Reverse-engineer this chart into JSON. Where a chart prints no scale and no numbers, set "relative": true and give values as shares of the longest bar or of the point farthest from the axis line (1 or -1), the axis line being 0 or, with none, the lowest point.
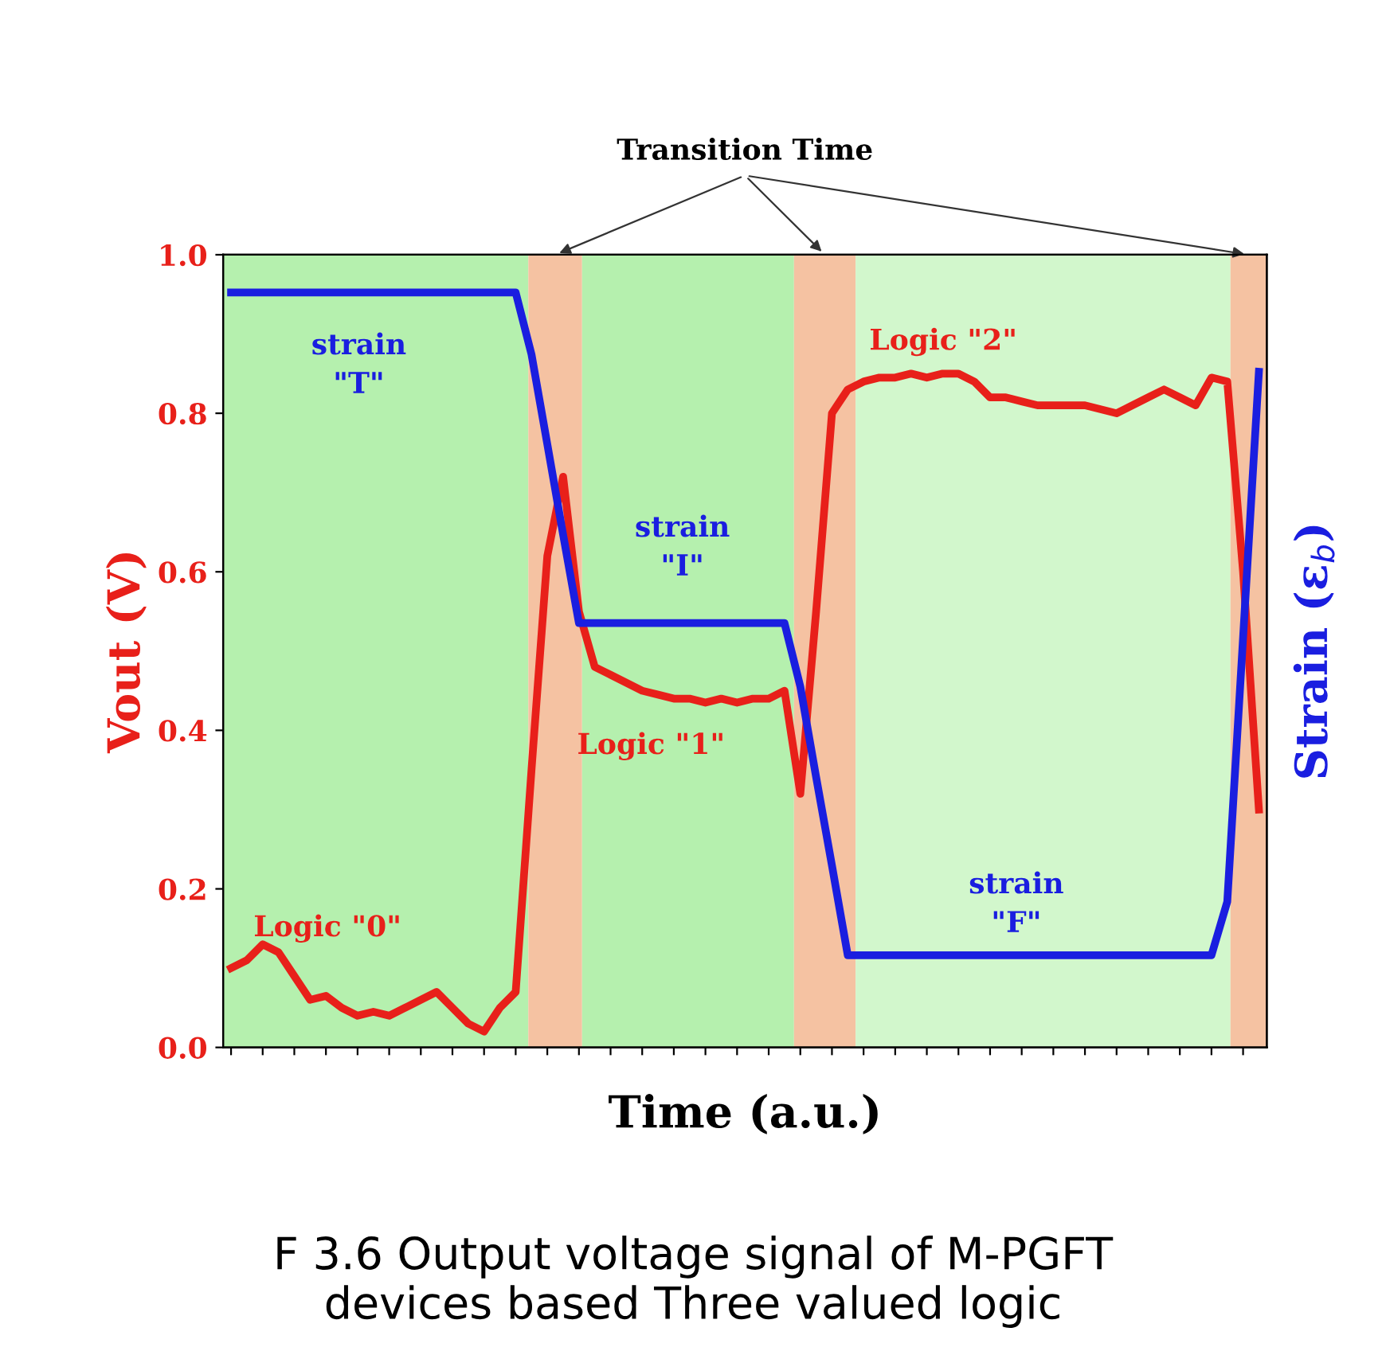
{
  "chart_data": [
    {
      "type": "line",
      "title": "Transition Time",
      "xlabel": "Time (a.u.)",
      "ylabel": "Vout (V)",
      "categories": [
        null,
        null,
        null,
        null,
        null,
        null,
        null,
        null,
        null,
        null,
        null,
        null,
        null,
        null,
        null,
        null,
        null,
        null,
        null,
        null,
        null,
        null,
        null,
        null,
        null,
        null,
        null,
        null,
        null,
        null,
        null,
        null,
        null,
        null,
        null,
        null,
        null,
        null,
        null,
        null,
        null,
        null,
        null,
        null,
        null,
        null,
        null,
        null,
        null,
        null,
        null,
        null,
        null,
        null,
        null,
        null,
        null,
        null,
        null,
        null,
        null,
        null,
        null,
        null,
        null,
        null
      ],
      "series": [
        {
          "color": "#e8201a",
          "values": [
            0.1,
            0.11,
            0.13,
            0.12,
            0.09,
            0.06,
            0.065,
            0.05,
            0.04,
            0.045,
            0.04,
            0.05,
            0.06,
            0.07,
            0.05,
            0.03,
            0.02,
            0.05,
            0.07,
            0.35,
            0.62,
            0.72,
            0.55,
            0.48,
            0.47,
            0.46,
            0.45,
            0.445,
            0.44,
            0.44,
            0.435,
            0.44,
            0.435,
            0.44,
            0.44,
            0.45,
            0.32,
            0.55,
            0.8,
            0.83,
            0.84,
            0.845,
            0.845,
            0.85,
            0.845,
            0.85,
            0.85,
            0.84,
            0.82,
            0.82,
            0.815,
            0.81,
            0.81,
            0.81,
            0.81,
            0.805,
            0.8,
            0.81,
            0.82,
            0.83,
            0.82,
            0.81,
            0.845,
            0.84,
            0.6,
            0.3
          ]
        }
      ],
      "ylim": [
        0,
        1.0
      ],
      "yticks": [
        {
          "value": 0,
          "label": "0.0"
        },
        {
          "value": 0.2,
          "label": "0.2"
        },
        {
          "value": 0.4,
          "label": "0.4"
        },
        {
          "value": 0.6,
          "label": "0.6"
        },
        {
          "value": 0.8,
          "label": "0.8"
        },
        {
          "value": 1.0,
          "label": "1.0"
        }
      ],
      "tick_labels": "y",
      "annotations": [
        "Logic \"0\"",
        "Logic \"1\"",
        "Logic \"2\"",
        "F 3.6 Output voltage signal of M-PGFT\ndevices based Three valued logic"
      ]
    },
    {
      "type": "line",
      "relative": true,
      "y2label": "Strain (ε$_{b}$)",
      "categories": [
        null,
        null,
        null,
        null,
        null,
        null,
        null,
        null,
        null,
        null,
        null,
        null,
        null,
        null,
        null,
        null,
        null,
        null,
        null,
        null,
        null,
        null,
        null,
        null,
        null,
        null,
        null,
        null,
        null,
        null,
        null,
        null,
        null,
        null,
        null,
        null,
        null,
        null,
        null,
        null,
        null,
        null,
        null,
        null,
        null,
        null,
        null,
        null,
        null,
        null,
        null,
        null,
        null,
        null,
        null,
        null,
        null,
        null,
        null,
        null,
        null,
        null,
        null,
        null,
        null,
        null
      ],
      "series": [
        {
          "color": "#1a1ee0",
          "values": [
            1,
            1,
            1,
            1,
            1,
            1,
            1,
            1,
            1,
            1,
            1,
            1,
            1,
            1,
            1,
            1,
            1,
            1,
            1,
            0.918,
            0.799,
            0.679,
            0.562,
            0.562,
            0.562,
            0.562,
            0.562,
            0.562,
            0.562,
            0.562,
            0.562,
            0.562,
            0.562,
            0.562,
            0.562,
            0.562,
            0.478,
            0.358,
            0.241,
            0.122,
            0.122,
            0.122,
            0.122,
            0.122,
            0.122,
            0.122,
            0.122,
            0.122,
            0.122,
            0.122,
            0.122,
            0.122,
            0.122,
            0.122,
            0.122,
            0.122,
            0.122,
            0.122,
            0.122,
            0.122,
            0.122,
            0.122,
            0.122,
            0.193,
            0.543,
            0.895
          ]
        }
      ],
      "annotations": [
        "strain\n\"T\"",
        "strain\n\"I\"",
        "strain\n\"F\""
      ]
    }
  ]
}
